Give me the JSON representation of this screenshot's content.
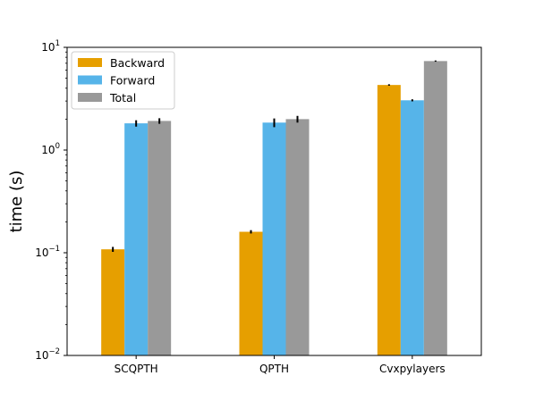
{
  "chart_data": {
    "type": "bar",
    "ylabel": "time (s)",
    "xlabel": "",
    "yscale": "log",
    "ylim": [
      0.01,
      10
    ],
    "yticks": [
      {
        "value": 0.01,
        "base": "10",
        "exp": "−2"
      },
      {
        "value": 0.1,
        "base": "10",
        "exp": "−1"
      },
      {
        "value": 1,
        "base": "10",
        "exp": "0"
      },
      {
        "value": 10,
        "base": "10",
        "exp": "1"
      }
    ],
    "categories": [
      "SCQPTH",
      "QPTH",
      "Cvxpylayers"
    ],
    "series": [
      {
        "name": "Backward",
        "color": "#E69F00",
        "values": [
          0.108,
          0.16,
          4.3
        ],
        "errors": [
          0.006,
          0.006,
          0.07
        ]
      },
      {
        "name": "Forward",
        "color": "#56B4E9",
        "values": [
          1.82,
          1.85,
          3.05
        ],
        "errors": [
          0.13,
          0.18,
          0.07
        ]
      },
      {
        "name": "Total",
        "color": "#999999",
        "values": [
          1.92,
          2.0,
          7.35
        ],
        "errors": [
          0.12,
          0.15,
          0.1
        ]
      }
    ],
    "legend_position": "top-left",
    "grid": false
  }
}
